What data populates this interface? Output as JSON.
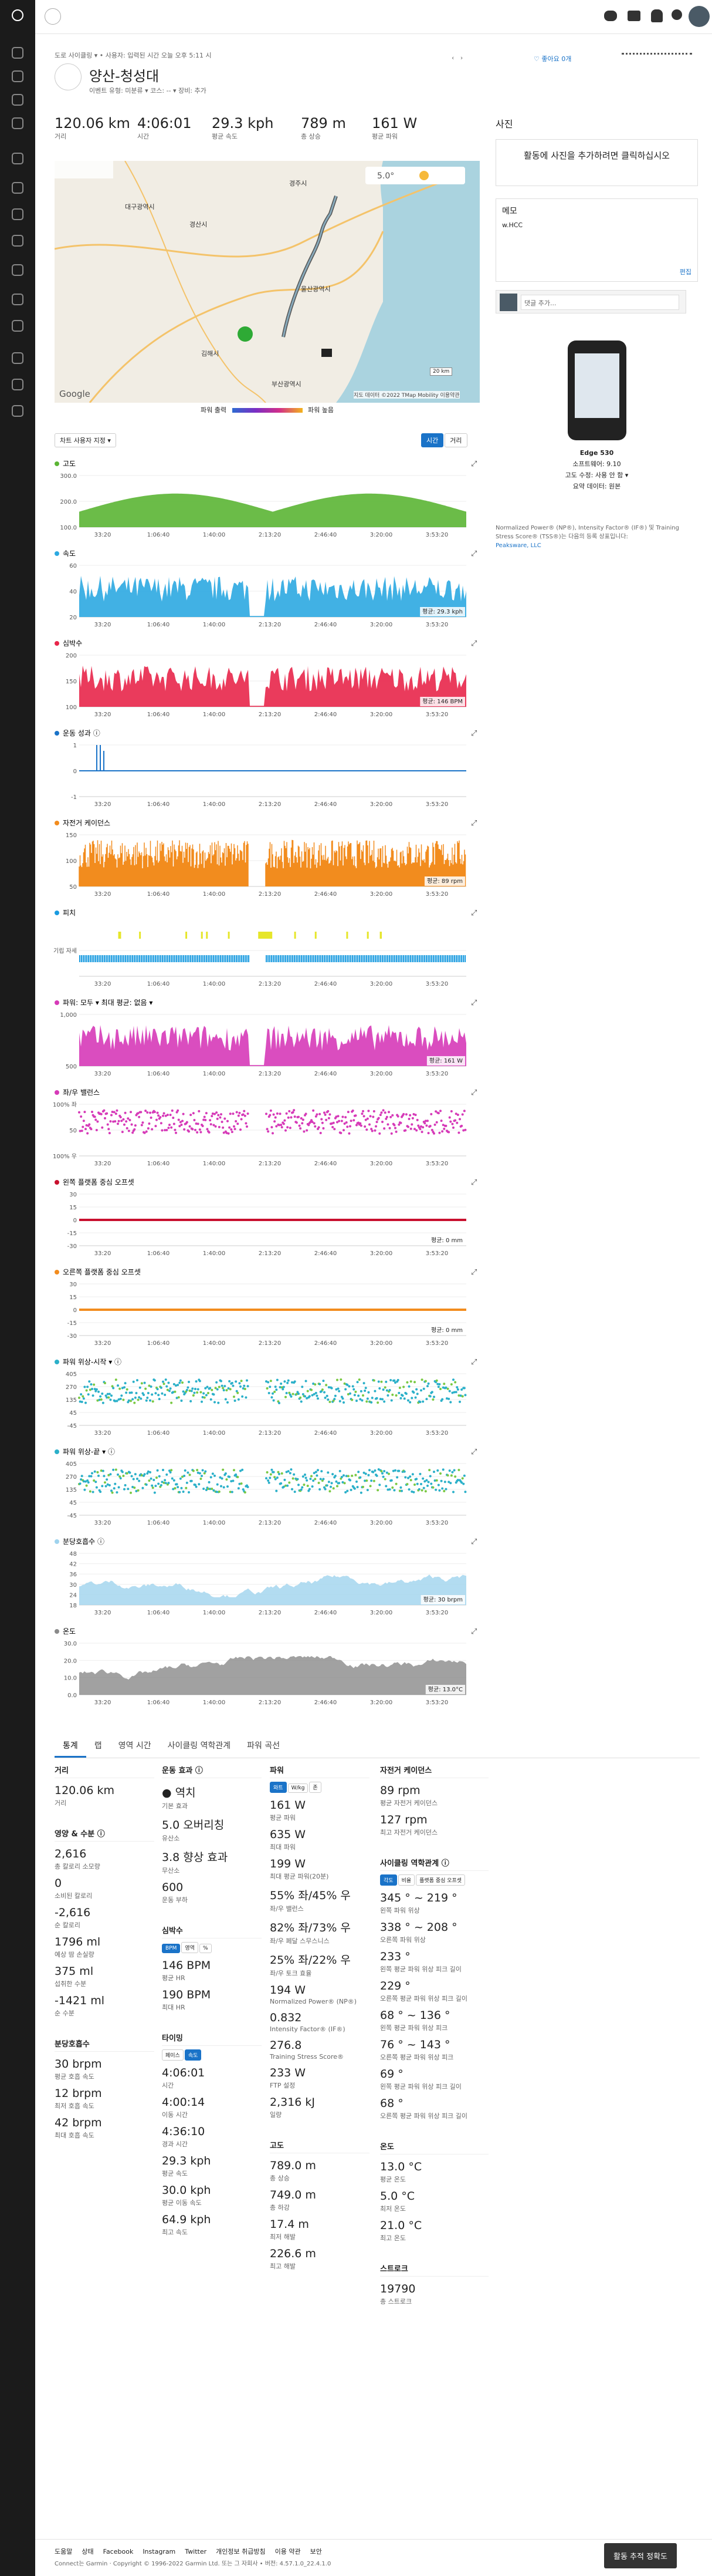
{
  "header": {
    "breadcrumb": "도로 사이클링 ▾  •  사용자: 입력된 시간 오늘 오후 5:11 시",
    "title": "양산-청성대",
    "meta": "이벤트 유형: 미분류 ▾     코스: -- ▾     장비: 추가",
    "like": "좋아요 0개"
  },
  "summary": [
    {
      "value": "120.06 km",
      "label": "거리"
    },
    {
      "value": "4:06:01",
      "label": "시간"
    },
    {
      "value": "29.3 kph",
      "label": "평균 속도"
    },
    {
      "value": "789 m",
      "label": "총 상승"
    },
    {
      "value": "161 W",
      "label": "평균 파워"
    }
  ],
  "map": {
    "temperature": "5.0°",
    "scale": "20 km",
    "google": "Google",
    "attribution": "지도 데이터 ©2022 TMap Mobility  이용약관",
    "legend_low": "파워 출력",
    "legend_high": "파워 높음",
    "places": [
      "대구광역시",
      "경산시",
      "경주시",
      "울산광역시",
      "김해시",
      "부산광역시"
    ]
  },
  "chart_controls": {
    "customize": "차트 사용자 지정 ▾",
    "time": "시간",
    "distance": "거리"
  },
  "chart_xticks": [
    "33:20",
    "1:06:40",
    "1:40:00",
    "2:13:20",
    "2:46:40",
    "3:20:00",
    "3:53:20"
  ],
  "charts": [
    {
      "title": "고도",
      "yticks": [
        "300.0",
        "200.0",
        "100.0"
      ]
    },
    {
      "title": "속도",
      "yticks": [
        "60",
        "40",
        "20"
      ],
      "average": "평균: 29.3 kph"
    },
    {
      "title": "심박수",
      "yticks": [
        "200",
        "150",
        "100"
      ],
      "average": "평균: 146 BPM"
    },
    {
      "title": "운동 성과 ⓘ",
      "yticks": [
        "1",
        "0",
        "-1"
      ]
    },
    {
      "title": "자전거 케이던스",
      "yticks": [
        "150",
        "100",
        "50"
      ],
      "average": "평균: 89 rpm"
    },
    {
      "title": "피치",
      "yticks": [
        "기립 자세"
      ]
    },
    {
      "title": "파워: 모두 ▾      최대 평균: 없음 ▾",
      "yticks": [
        "1,000",
        "500"
      ],
      "average": "평균: 161 W"
    },
    {
      "title": "좌/우 밸런스",
      "yticks": [
        "100% 좌",
        "50",
        "100% 우"
      ]
    },
    {
      "title": "왼쪽 플랫폼 중심 오프셋",
      "yticks": [
        "30",
        "15",
        "0",
        "-15",
        "-30"
      ],
      "average": "평균: 0 mm"
    },
    {
      "title": "오른쪽 플랫폼 중심 오프셋",
      "yticks": [
        "30",
        "15",
        "0",
        "-15",
        "-30"
      ],
      "average": "평균: 0 mm"
    },
    {
      "title": "파워 위상-시작 ▾ ⓘ",
      "yticks": [
        "405",
        "270",
        "135",
        "45",
        "-45"
      ]
    },
    {
      "title": "파워 위상-끝 ▾ ⓘ",
      "yticks": [
        "405",
        "270",
        "135",
        "45",
        "-45"
      ]
    },
    {
      "title": "분당호흡수 ⓘ",
      "yticks": [
        "48",
        "42",
        "36",
        "30",
        "24",
        "18"
      ],
      "average": "평균: 30 brpm"
    },
    {
      "title": "온도",
      "yticks": [
        "30.0",
        "20.0",
        "10.0",
        "0.0"
      ],
      "average": "평균: 13.0°C"
    }
  ],
  "sidebar_right": {
    "photos_title": "사진",
    "photos_prompt": "활동에 사진을 추가하려면 클릭하십시오",
    "notes_title": "메모",
    "notes_text": "w.HCC",
    "edit": "편집",
    "comment_placeholder": "댓글 추가...",
    "device_name": "Edge 530",
    "device_lines": [
      "소프트웨어: 9.10",
      "고도 수정: 사용 안 함 ▾",
      "요약 데이터: 원본"
    ],
    "disclaimer": "Normalized Power® (NP®), Intensity Factor® (IF®) 및 Training Stress Score® (TSS®)는 다음의 등록 상표입니다:",
    "disclaimer_link": "Peaksware, LLC"
  },
  "tabs": [
    "통계",
    "랩",
    "영역 시간",
    "사이클링 역학관계",
    "파워 곡선"
  ],
  "stats_columns": [
    [
      {
        "title": "거리",
        "items": [
          {
            "value": "120.06 km",
            "label": "거리"
          }
        ]
      },
      {
        "title": "영양 & 수분 ⓘ",
        "items": [
          {
            "value": "2,616",
            "label": "총 칼로리 소모량"
          },
          {
            "value": "0",
            "label": "소비된 칼로리"
          },
          {
            "value": "-2,616",
            "label": "순 칼로리"
          },
          {
            "value": "1796 ml",
            "label": "예상 땀 손실량"
          },
          {
            "value": "375 ml",
            "label": "섭취한 수분"
          },
          {
            "value": "-1421 ml",
            "label": "순 수분"
          }
        ]
      },
      {
        "title": "분당호흡수",
        "items": [
          {
            "value": "30 brpm",
            "label": "평균 호흡 속도"
          },
          {
            "value": "12 brpm",
            "label": "최저 호흡 속도"
          },
          {
            "value": "42 brpm",
            "label": "최대 호흡 속도"
          }
        ]
      }
    ],
    [
      {
        "title": "운동 효과 ⓘ",
        "items": [
          {
            "value": "● 역치",
            "label": "기본 효과"
          },
          {
            "value": "5.0 오버리칭",
            "label": "유산소"
          },
          {
            "value": "3.8 향상 효과",
            "label": "무산소"
          },
          {
            "value": "600",
            "label": "운동 부하"
          }
        ]
      },
      {
        "title": "심박수",
        "toggles": [
          "BPM",
          "영역",
          "%"
        ],
        "items": [
          {
            "value": "146 BPM",
            "label": "평균 HR"
          },
          {
            "value": "190 BPM",
            "label": "최대 HR"
          }
        ]
      },
      {
        "title": "타이밍",
        "toggles": [
          "페이스",
          "속도"
        ],
        "items": [
          {
            "value": "4:06:01",
            "label": "시간"
          },
          {
            "value": "4:00:14",
            "label": "이동 시간"
          },
          {
            "value": "4:36:10",
            "label": "경과 시간"
          },
          {
            "value": "29.3 kph",
            "label": "평균 속도"
          },
          {
            "value": "30.0 kph",
            "label": "평균 이동 속도"
          },
          {
            "value": "64.9 kph",
            "label": "최고 속도"
          }
        ]
      }
    ],
    [
      {
        "title": "파워",
        "toggles": [
          "와트",
          "W/kg",
          "존"
        ],
        "items": [
          {
            "value": "161 W",
            "label": "평균 파워"
          },
          {
            "value": "635 W",
            "label": "최대 파워"
          },
          {
            "value": "199 W",
            "label": "최대 평균 파워(20분)"
          },
          {
            "value": "55% 좌/45% 우",
            "label": "좌/우 밸런스"
          },
          {
            "value": "82% 좌/73% 우",
            "label": "좌/우 페달 스무스니스"
          },
          {
            "value": "25% 좌/22% 우",
            "label": "좌/우 토크 효율"
          },
          {
            "value": "194 W",
            "label": "Normalized Power® (NP®)"
          },
          {
            "value": "0.832",
            "label": "Intensity Factor® (IF®)"
          },
          {
            "value": "276.8",
            "label": "Training Stress Score®"
          },
          {
            "value": "233 W",
            "label": "FTP 설정"
          },
          {
            "value": "2,316 kJ",
            "label": "일량"
          }
        ]
      },
      {
        "title": "고도",
        "items": [
          {
            "value": "789.0 m",
            "label": "총 상승"
          },
          {
            "value": "749.0 m",
            "label": "총 하강"
          },
          {
            "value": "17.4 m",
            "label": "최저 해발"
          },
          {
            "value": "226.6 m",
            "label": "최고 해발"
          }
        ]
      }
    ],
    [
      {
        "title": "자전거 케이던스",
        "items": [
          {
            "value": "89 rpm",
            "label": "평균 자전거 케이던스"
          },
          {
            "value": "127 rpm",
            "label": "최고 자전거 케이던스"
          }
        ]
      },
      {
        "title": "사이클링 역학관계 ⓘ",
        "toggles": [
          "각도",
          "비율",
          "플랫폼 중심 오프셋"
        ],
        "items": [
          {
            "value": "345 ° ~ 219 °",
            "label": "왼쪽 파워 위상"
          },
          {
            "value": "338 ° ~ 208 °",
            "label": "오른쪽 파워 위상"
          },
          {
            "value": "233 °",
            "label": "왼쪽 평균 파워 위상 피크 길이"
          },
          {
            "value": "229 °",
            "label": "오른쪽 평균 파워 위상 피크 길이"
          },
          {
            "value": "68 ° ~ 136 °",
            "label": "왼쪽 평균 파워 위상 피크"
          },
          {
            "value": "76 ° ~ 143 °",
            "label": "오른쪽 평균 파워 위상 피크"
          },
          {
            "value": "69 °",
            "label": "왼쪽 평균 파워 위상 피크 길이"
          },
          {
            "value": "68 °",
            "label": "오른쪽 평균 파워 위상 피크 길이"
          }
        ]
      },
      {
        "title": "온도",
        "items": [
          {
            "value": "13.0 °C",
            "label": "평균 온도"
          },
          {
            "value": "5.0 °C",
            "label": "최저 온도"
          },
          {
            "value": "21.0 °C",
            "label": "최고 온도"
          }
        ]
      },
      {
        "title": "스트로크",
        "items": [
          {
            "value": "19790",
            "label": "총 스트로크"
          }
        ]
      }
    ]
  ],
  "footer": {
    "links": [
      "도움말",
      "상태",
      "Facebook",
      "Instagram",
      "Twitter",
      "개인정보 취급방침",
      "이용 약관",
      "보안"
    ],
    "copyright": "Connect는 Garmin · Copyright © 1996-2022 Garmin Ltd. 또는 그 자회사 • 버전: 4.57.1.0_22.4.1.0",
    "button": "활동 추적 정확도"
  }
}
